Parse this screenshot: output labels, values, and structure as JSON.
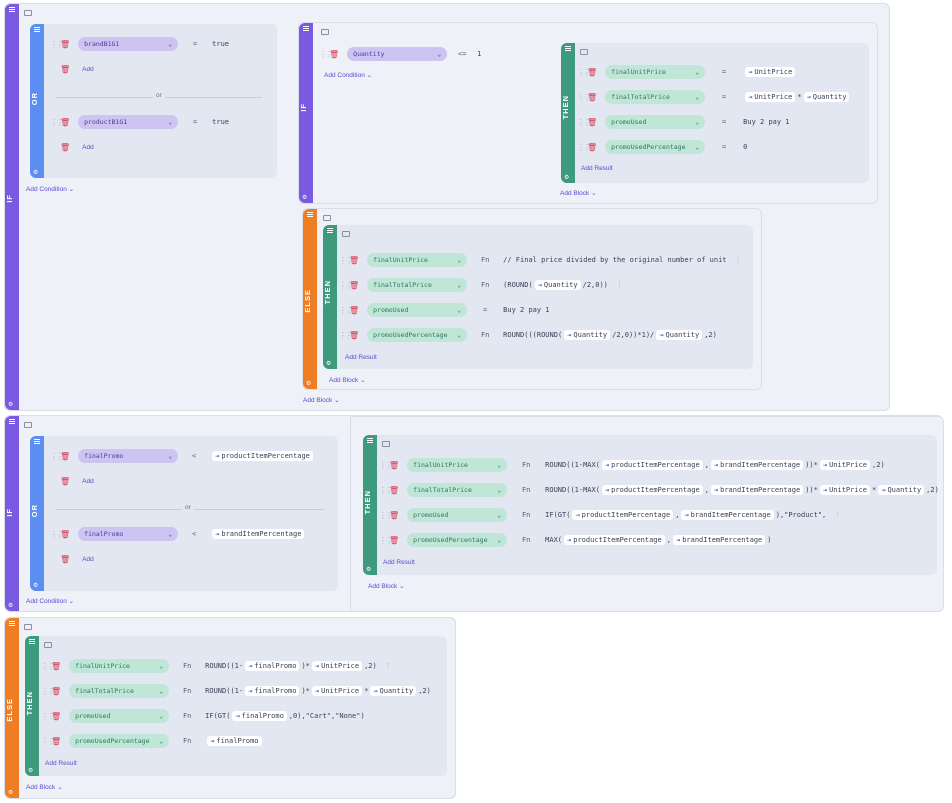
{
  "labels": {
    "if": "IF",
    "or": "OR",
    "then": "THEN",
    "else": "ELSE",
    "or_divider": "or"
  },
  "actions": {
    "add": "Add",
    "add_condition": "Add Condition",
    "add_block": "Add Block",
    "add_result": "Add Result"
  },
  "block1": {
    "cond": {
      "r1": {
        "field": "brandB1G1",
        "op": "=",
        "value": "true"
      },
      "r2": {
        "field": "productB1G1",
        "op": "=",
        "value": "true"
      }
    },
    "inner_if": {
      "cond": {
        "field": "Quantity",
        "op": "<=",
        "value": "1"
      },
      "then": {
        "r1": {
          "field": "finalUnitPrice",
          "op": "=",
          "ref": "UnitPrice"
        },
        "r2": {
          "field": "finalTotalPrice",
          "op": "=",
          "ref1": "UnitPrice",
          "mid": "*",
          "ref2": "Quantity"
        },
        "r3": {
          "field": "promoUsed",
          "op": "=",
          "value": "Buy 2 pay 1"
        },
        "r4": {
          "field": "promoUsedPercentage",
          "op": "=",
          "value": "0"
        }
      }
    },
    "inner_else": {
      "r1": {
        "field": "finalUnitPrice",
        "op": "Fn",
        "value": "// Final price divided by the original number of unit"
      },
      "r2": {
        "field": "finalTotalPrice",
        "op": "Fn",
        "pre": "(ROUND(",
        "ref": "Quantity",
        "post": "/2,0))"
      },
      "r3": {
        "field": "promoUsed",
        "op": "=",
        "value": "Buy 2 pay 1"
      },
      "r4": {
        "field": "promoUsedPercentage",
        "op": "Fn",
        "pre": "ROUND(((ROUND(",
        "ref1": "Quantity",
        "mid": "/2,0))*1)/",
        "ref2": "Quantity",
        "post": ",2)"
      }
    }
  },
  "block2": {
    "cond": {
      "r1": {
        "field": "finalPromo",
        "op": "<",
        "ref": "productItemPercentage"
      },
      "r2": {
        "field": "finalPromo",
        "op": "<",
        "ref": "brandItemPercentage"
      }
    },
    "then": {
      "r1": {
        "field": "finalUnitPrice",
        "op": "Fn",
        "pre": "ROUND((1-MAX(",
        "ref1": "productItemPercentage",
        "sep": ",",
        "ref2": "brandItemPercentage",
        "mid": "))*",
        "ref3": "UnitPrice",
        "post": ",2)"
      },
      "r2": {
        "field": "finalTotalPrice",
        "op": "Fn",
        "pre": "ROUND((1-MAX(",
        "ref1": "productItemPercentage",
        "sep": ",",
        "ref2": "brandItemPercentage",
        "mid": "))*",
        "ref3": "UnitPrice",
        "mid2": "*",
        "ref4": "Quantity",
        "post": ",2)"
      },
      "r3": {
        "field": "promoUsed",
        "op": "Fn",
        "pre": "IF(GT(",
        "ref1": "productItemPercentage",
        "sep": ",",
        "ref2": "brandItemPercentage",
        "post": "),\"Product\","
      },
      "r4": {
        "field": "promoUsedPercentage",
        "op": "Fn",
        "pre": "MAX(",
        "ref1": "productItemPercentage",
        "sep": ",",
        "ref2": "brandItemPercentage",
        "post": ")"
      }
    }
  },
  "block3": {
    "r1": {
      "field": "finalUnitPrice",
      "op": "Fn",
      "pre": "ROUND((1-",
      "ref1": "finalPromo",
      "mid": ")*",
      "ref2": "UnitPrice",
      "post": ",2)"
    },
    "r2": {
      "field": "finalTotalPrice",
      "op": "Fn",
      "pre": "ROUND((1-",
      "ref1": "finalPromo",
      "mid": ")*",
      "ref2": "UnitPrice",
      "mid2": "*",
      "ref3": "Quantity",
      "post": ",2)"
    },
    "r3": {
      "field": "promoUsed",
      "op": "Fn",
      "pre": "IF(GT(",
      "ref1": "finalPromo",
      "post": ",0),\"Cart\",\"None\")"
    },
    "r4": {
      "field": "promoUsedPercentage",
      "op": "Fn",
      "ref1": "finalPromo"
    }
  },
  "icons": {
    "drag": "drag-handle-icon",
    "delete": "trash-icon",
    "reference": "reference-arrow-icon",
    "comment": "comment-icon",
    "settings": "gear-icon",
    "menu": "menu-icon",
    "chevron": "chevron-down-icon"
  },
  "colors": {
    "if": "#7a5ae0",
    "or": "#5b8ef0",
    "then": "#3d9a7d",
    "else": "#ef7d24",
    "link": "#5b4ad0",
    "delete": "#d8344c"
  }
}
